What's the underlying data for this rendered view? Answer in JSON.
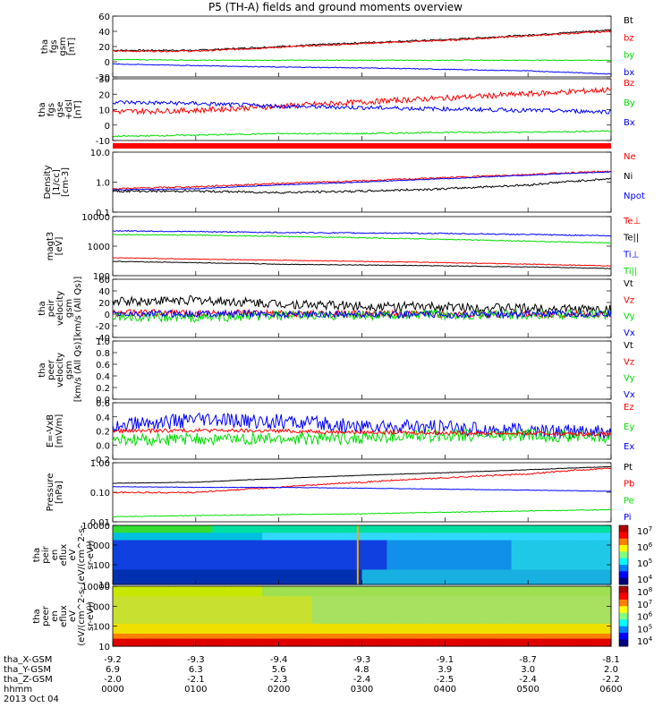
{
  "title": "P5 (TH-A) fields and ground moments overview",
  "colors": {
    "black": "#000000",
    "red": "#ff0000",
    "green": "#00dd00",
    "blue": "#0000ff",
    "orange": "#ffa500"
  },
  "chart_data": [
    {
      "type": "line",
      "id": "p1",
      "ylabel": [
        "tha",
        "fgs",
        "gsm",
        "[nT]"
      ],
      "yticks": [
        60,
        40,
        20,
        0,
        -20
      ],
      "ylim": [
        -20,
        60
      ],
      "legend": [
        {
          "name": "Bt",
          "color": "black"
        },
        {
          "name": "bz",
          "color": "red"
        },
        {
          "name": "by",
          "color": "green"
        },
        {
          "name": "bx",
          "color": "blue"
        }
      ],
      "series": [
        {
          "name": "Bt",
          "color": "black",
          "x": [
            0,
            1,
            2,
            3,
            4,
            5,
            6
          ],
          "y": [
            15,
            15,
            20,
            25,
            29,
            35,
            42
          ],
          "noise": 1
        },
        {
          "name": "bz",
          "color": "red",
          "x": [
            0,
            1,
            2,
            3,
            4,
            5,
            6
          ],
          "y": [
            14,
            14,
            19,
            24,
            28,
            34,
            40
          ],
          "noise": 1
        },
        {
          "name": "by",
          "color": "green",
          "x": [
            0,
            1,
            2,
            3,
            4,
            5,
            6
          ],
          "y": [
            3,
            2,
            2,
            2,
            2,
            2,
            2
          ],
          "noise": 0.5
        },
        {
          "name": "bx",
          "color": "blue",
          "x": [
            0,
            1,
            2,
            3,
            4,
            5,
            6
          ],
          "y": [
            -3,
            -5,
            -7,
            -8,
            -10,
            -12,
            -16
          ],
          "noise": 0.5
        }
      ]
    },
    {
      "type": "line",
      "id": "p2",
      "ylabel": [
        "tha",
        "fgs",
        "gse",
        "+dsl",
        "[nT]"
      ],
      "yticks": [
        30,
        20,
        10,
        0,
        -10
      ],
      "ylim": [
        -15,
        30
      ],
      "legend": [
        {
          "name": "Bz",
          "color": "red"
        },
        {
          "name": "By",
          "color": "green"
        },
        {
          "name": "Bx",
          "color": "blue"
        }
      ],
      "series": [
        {
          "name": "Bz",
          "color": "red",
          "x": [
            0,
            1,
            2,
            3,
            4,
            5,
            6
          ],
          "y": [
            6,
            7,
            10,
            13,
            16,
            19,
            22
          ],
          "noise": 2
        },
        {
          "name": "By",
          "color": "green",
          "x": [
            0,
            1,
            2,
            3,
            4,
            5,
            6
          ],
          "y": [
            -12,
            -11,
            -10,
            -10,
            -9,
            -9,
            -8
          ],
          "noise": 0.5
        },
        {
          "name": "Bx",
          "color": "blue",
          "x": [
            0,
            1,
            2,
            3,
            4,
            5,
            6
          ],
          "y": [
            13,
            12,
            10,
            9,
            8,
            7,
            6
          ],
          "noise": 1.5
        }
      ]
    },
    {
      "type": "line",
      "id": "p3",
      "log": true,
      "ylabel": [
        "Density",
        "[1/cc]",
        "[cm-3]"
      ],
      "yticks": [
        "10.0",
        "1.0",
        "0.1"
      ],
      "ylim": [
        0.1,
        10
      ],
      "legend": [
        {
          "name": "Ne",
          "color": "red"
        },
        {
          "name": "Ni",
          "color": "black"
        },
        {
          "name": "Npot",
          "color": "blue"
        }
      ],
      "series": [
        {
          "name": "Ne",
          "color": "red",
          "x": [
            0,
            1,
            2,
            3,
            4,
            5,
            6
          ],
          "y": [
            0.6,
            0.7,
            0.9,
            1.1,
            1.4,
            1.8,
            2.3
          ],
          "noise": 0.06
        },
        {
          "name": "Npot",
          "color": "blue",
          "x": [
            0,
            1,
            2,
            3,
            4,
            5,
            6
          ],
          "y": [
            0.55,
            0.6,
            0.8,
            1.0,
            1.3,
            1.7,
            2.2
          ],
          "noise": 0.03
        },
        {
          "name": "Ni",
          "color": "black",
          "x": [
            0,
            1,
            2,
            3,
            4,
            5,
            6
          ],
          "y": [
            0.5,
            0.5,
            0.45,
            0.5,
            0.6,
            0.8,
            1.3
          ],
          "noise": 0.08
        }
      ]
    },
    {
      "type": "line",
      "id": "p4",
      "log": true,
      "ylabel": [
        "magt3",
        "[eV]"
      ],
      "yticks": [
        "10000",
        "1000",
        "100"
      ],
      "ylim": [
        50,
        10000
      ],
      "legend": [
        {
          "name": "Te⊥",
          "color": "red"
        },
        {
          "name": "Te||",
          "color": "black"
        },
        {
          "name": "Ti⊥",
          "color": "blue"
        },
        {
          "name": "Ti||",
          "color": "green"
        }
      ],
      "series": [
        {
          "name": "Ti⊥",
          "color": "blue",
          "x": [
            0,
            1,
            2,
            3,
            4,
            5,
            6
          ],
          "y": [
            2800,
            2600,
            2400,
            2300,
            2200,
            2000,
            1800
          ],
          "noise": 0.05
        },
        {
          "name": "Ti||",
          "color": "green",
          "x": [
            0,
            1,
            2,
            3,
            4,
            5,
            6
          ],
          "y": [
            2000,
            1900,
            1700,
            1500,
            1300,
            1100,
            950
          ],
          "noise": 0.04
        },
        {
          "name": "Te⊥",
          "color": "red",
          "x": [
            0,
            1,
            2,
            3,
            4,
            5,
            6
          ],
          "y": [
            250,
            220,
            200,
            180,
            160,
            140,
            120
          ],
          "noise": 0.03
        },
        {
          "name": "Te||",
          "color": "black",
          "x": [
            0,
            1,
            2,
            3,
            4,
            5,
            6
          ],
          "y": [
            180,
            160,
            140,
            130,
            120,
            110,
            95
          ],
          "noise": 0.03
        }
      ]
    },
    {
      "type": "line",
      "id": "p5",
      "ylabel": [
        "tha",
        "peir",
        "velocity",
        "gsm",
        "[km/s (All Qs)]"
      ],
      "yticks": [
        60,
        40,
        20,
        0,
        -20,
        -40
      ],
      "ylim": [
        -40,
        60
      ],
      "legend": [
        {
          "name": "Vt",
          "color": "black"
        },
        {
          "name": "Vz",
          "color": "red"
        },
        {
          "name": "Vy",
          "color": "green"
        },
        {
          "name": "Vx",
          "color": "blue"
        }
      ],
      "series": [
        {
          "name": "Vt",
          "color": "black",
          "x": [
            0,
            1,
            2,
            3,
            4,
            5,
            6
          ],
          "y": [
            22,
            24,
            18,
            14,
            12,
            10,
            8
          ],
          "noise": 8
        },
        {
          "name": "Vz",
          "color": "red",
          "x": [
            0,
            1,
            2,
            3,
            4,
            5,
            6
          ],
          "y": [
            2,
            2,
            1,
            0,
            0,
            0,
            0
          ],
          "noise": 6
        },
        {
          "name": "Vy",
          "color": "green",
          "x": [
            0,
            1,
            2,
            3,
            4,
            5,
            6
          ],
          "y": [
            -5,
            -6,
            -3,
            -2,
            -1,
            -1,
            0
          ],
          "noise": 8
        },
        {
          "name": "Vx",
          "color": "blue",
          "x": [
            0,
            1,
            2,
            3,
            4,
            5,
            6
          ],
          "y": [
            0,
            1,
            0,
            0,
            -1,
            0,
            0
          ],
          "noise": 6
        }
      ]
    },
    {
      "type": "line",
      "id": "p6",
      "ylabel": [
        "tha",
        "peer",
        "velocity",
        "gsm",
        "[km/s (All Qs)]"
      ],
      "yticks": [
        "1.0",
        "0.8",
        "0.6",
        "0.4",
        "0.2",
        "0.0"
      ],
      "ylim": [
        0,
        1
      ],
      "legend": [
        {
          "name": "Vt",
          "color": "black"
        },
        {
          "name": "Vz",
          "color": "red"
        },
        {
          "name": "Vy",
          "color": "green"
        },
        {
          "name": "Vx",
          "color": "blue"
        }
      ],
      "series": []
    },
    {
      "type": "line",
      "id": "p7",
      "ylabel": [
        "E=-VxB",
        "[mV/m]"
      ],
      "yticks": [
        "0.6",
        "0.4",
        "0.2",
        "0.0",
        "-0.2"
      ],
      "ylim": [
        -0.3,
        0.6
      ],
      "legend": [
        {
          "name": "Ez",
          "color": "red"
        },
        {
          "name": "Ey",
          "color": "green"
        },
        {
          "name": "Ex",
          "color": "blue"
        }
      ],
      "series": [
        {
          "name": "Ex",
          "color": "blue",
          "x": [
            0,
            1,
            2,
            3,
            4,
            5,
            6
          ],
          "y": [
            0.25,
            0.32,
            0.3,
            0.22,
            0.2,
            0.15,
            0.12
          ],
          "noise": 0.12
        },
        {
          "name": "Ey",
          "color": "green",
          "x": [
            0,
            1,
            2,
            3,
            4,
            5,
            6
          ],
          "y": [
            0.0,
            0.02,
            0.02,
            0.04,
            0.08,
            0.08,
            0.05
          ],
          "noise": 0.1
        },
        {
          "name": "Ez",
          "color": "red",
          "x": [
            0,
            1,
            2,
            3,
            4,
            5,
            6
          ],
          "y": [
            0.15,
            0.16,
            0.15,
            0.13,
            0.12,
            0.11,
            0.1
          ],
          "noise": 0.03
        }
      ]
    },
    {
      "type": "line",
      "id": "p8",
      "log": true,
      "ylabel": [
        "Pressure",
        "[nPa]"
      ],
      "yticks": [
        "1.00",
        "0.10",
        "0.01"
      ],
      "ylim": [
        0.007,
        1.2
      ],
      "legend": [
        {
          "name": "Pt",
          "color": "black"
        },
        {
          "name": "Pb",
          "color": "red"
        },
        {
          "name": "Pe",
          "color": "green"
        },
        {
          "name": "Pi",
          "color": "blue"
        }
      ],
      "series": [
        {
          "name": "Pt",
          "color": "black",
          "x": [
            0,
            1,
            2,
            3,
            4,
            5,
            6
          ],
          "y": [
            0.2,
            0.22,
            0.3,
            0.4,
            0.5,
            0.65,
            0.85
          ],
          "noise": 0.02
        },
        {
          "name": "Pb",
          "color": "red",
          "x": [
            0,
            1,
            2,
            3,
            4,
            5,
            6
          ],
          "y": [
            0.09,
            0.09,
            0.14,
            0.22,
            0.32,
            0.45,
            0.75
          ],
          "noise": 0.06
        },
        {
          "name": "Pi",
          "color": "blue",
          "x": [
            0,
            1,
            2,
            3,
            4,
            5,
            6
          ],
          "y": [
            0.15,
            0.14,
            0.14,
            0.13,
            0.12,
            0.11,
            0.1
          ],
          "noise": 0.02
        },
        {
          "name": "Pe",
          "color": "green",
          "x": [
            0,
            1,
            2,
            3,
            4,
            5,
            6
          ],
          "y": [
            0.011,
            0.012,
            0.013,
            0.014,
            0.016,
            0.018,
            0.02
          ],
          "noise": 0.03
        }
      ]
    },
    {
      "type": "heatmap",
      "id": "p9",
      "ylabel": [
        "tha",
        "peir",
        "en",
        "eflux",
        "eV",
        "(eV/(cm^2-s-",
        "sr-eV))"
      ],
      "yticks": [
        "10000",
        "1000",
        "100",
        "10"
      ],
      "colorbar_ticks": [
        "10^7",
        "10^6",
        "10^5",
        "10^4"
      ]
    },
    {
      "type": "heatmap",
      "id": "p10",
      "ylabel": [
        "tha",
        "peer",
        "en",
        "eflux",
        "eV",
        "(eV/(cm^2-s-",
        "sr-eV))"
      ],
      "yticks": [
        "10000",
        "1000",
        "100",
        "10"
      ],
      "colorbar_ticks": [
        "10^8",
        "10^7",
        "10^6",
        "10^5",
        "10^4"
      ]
    }
  ],
  "xaxis": {
    "row_labels": [
      "tha_X-GSM",
      "tha_Y-GSM",
      "tha_Z-GSM",
      "hhmm",
      "2013 Oct 04"
    ],
    "columns": [
      {
        "x": "-9.2",
        "y": "6.9",
        "z": "-2.0",
        "t": "0000"
      },
      {
        "x": "-9.3",
        "y": "6.3",
        "z": "-2.1",
        "t": "0100"
      },
      {
        "x": "-9.4",
        "y": "5.6",
        "z": "-2.3",
        "t": "0200"
      },
      {
        "x": "-9.3",
        "y": "4.8",
        "z": "-2.4",
        "t": "0300"
      },
      {
        "x": "-9.1",
        "y": "3.9",
        "z": "-2.5",
        "t": "0400"
      },
      {
        "x": "-8.7",
        "y": "3.0",
        "z": "-2.4",
        "t": "0500"
      },
      {
        "x": "-8.1",
        "y": "2.0",
        "z": "-2.2",
        "t": "0600"
      }
    ]
  }
}
